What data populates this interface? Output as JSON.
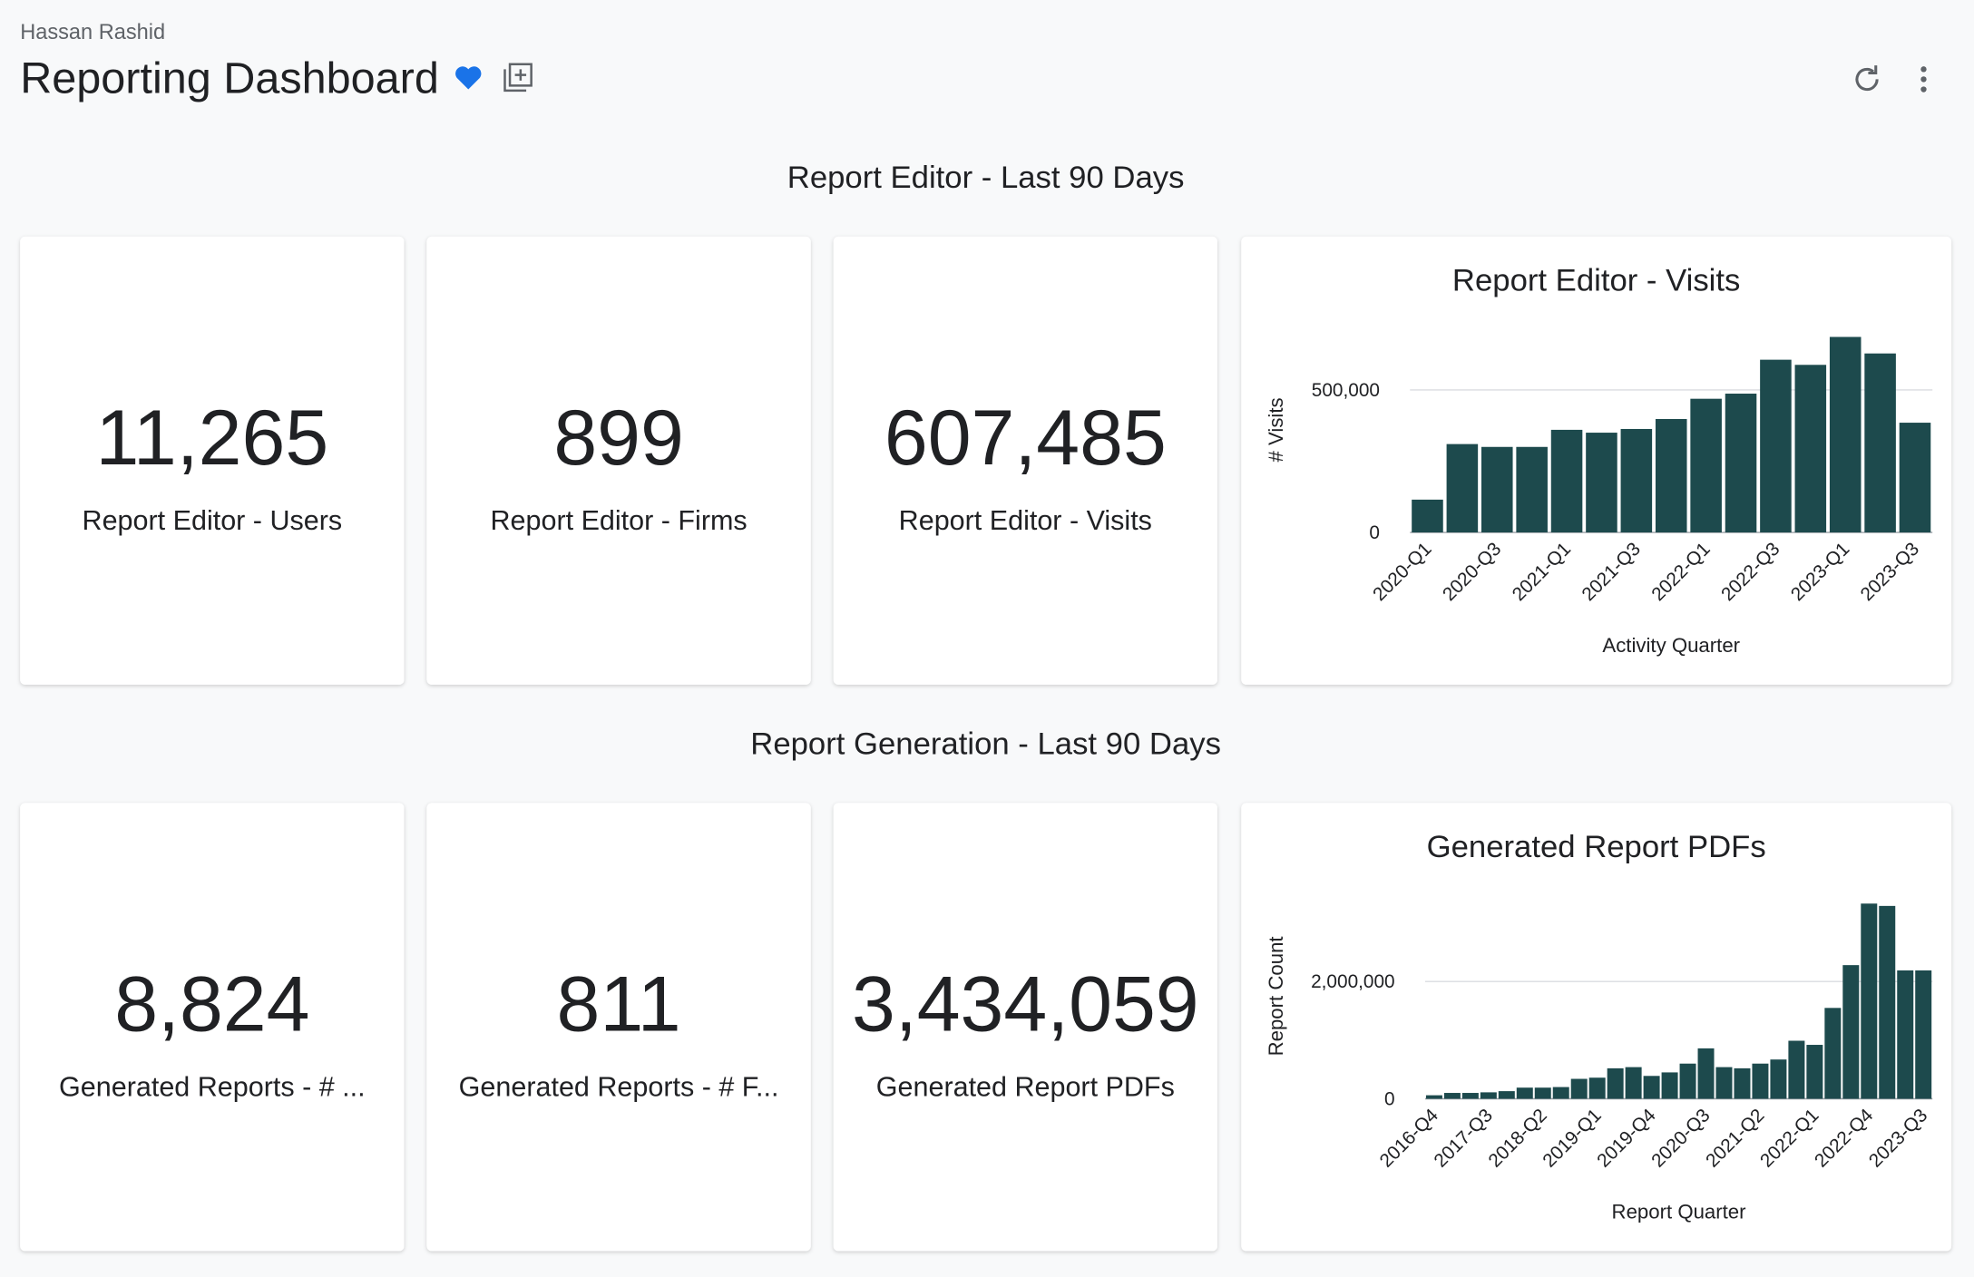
{
  "header": {
    "owner": "Hassan Rashid",
    "title": "Reporting Dashboard"
  },
  "sections": [
    {
      "title": "Report Editor - Last 90 Days",
      "tiles": [
        {
          "value": "11,265",
          "label": "Report Editor - Users"
        },
        {
          "value": "899",
          "label": "Report Editor - Firms"
        },
        {
          "value": "607,485",
          "label": "Report Editor - Visits"
        }
      ]
    },
    {
      "title": "Report Generation - Last 90 Days",
      "tiles": [
        {
          "value": "8,824",
          "label": "Generated Reports - # ..."
        },
        {
          "value": "811",
          "label": "Generated Reports - # F..."
        },
        {
          "value": "3,434,059",
          "label": "Generated Report PDFs"
        }
      ]
    }
  ],
  "chart_data": [
    {
      "type": "bar",
      "title": "Report Editor - Visits",
      "x_label": "Activity Quarter",
      "y_label": "# Visits",
      "categories": [
        "2020-Q1",
        null,
        "2020-Q3",
        null,
        "2021-Q1",
        null,
        "2021-Q3",
        null,
        "2022-Q1",
        null,
        "2022-Q3",
        null,
        "2023-Q1",
        null,
        "2023-Q3"
      ],
      "values": [
        115000,
        310000,
        300000,
        300000,
        360000,
        350000,
        363000,
        398000,
        469000,
        487000,
        606000,
        588000,
        686000,
        628000,
        385000
      ],
      "color": "#1d4a4d",
      "ylim": [
        0,
        720000
      ],
      "yticks": [
        0,
        {
          "value": 500000,
          "label": "500,000"
        }
      ],
      "grid": true
    },
    {
      "type": "bar",
      "title": "Generated Report PDFs",
      "x_label": "Report Quarter",
      "y_label": "Report Count",
      "categories": [
        "2016-Q4",
        null,
        null,
        "2017-Q3",
        null,
        null,
        "2018-Q2",
        null,
        null,
        "2019-Q1",
        null,
        null,
        "2019-Q4",
        null,
        null,
        "2020-Q3",
        null,
        null,
        "2021-Q2",
        null,
        null,
        "2022-Q1",
        null,
        null,
        "2022-Q4",
        null,
        null,
        "2023-Q3"
      ],
      "values": [
        60000,
        100000,
        100000,
        110000,
        130000,
        190000,
        190000,
        200000,
        340000,
        360000,
        520000,
        540000,
        390000,
        450000,
        600000,
        860000,
        540000,
        520000,
        600000,
        670000,
        990000,
        920000,
        1550000,
        2280000,
        3330000,
        3290000,
        2190000,
        2190000
      ],
      "color": "#1d4a4d",
      "ylim": [
        0,
        3500000
      ],
      "yticks": [
        0,
        {
          "value": 2000000,
          "label": "2,000,000"
        }
      ],
      "grid": true
    }
  ]
}
